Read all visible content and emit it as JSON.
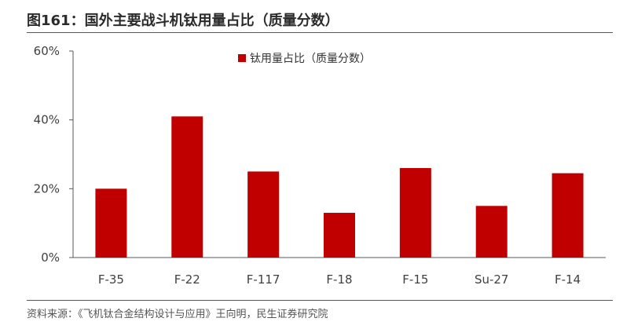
{
  "figure": {
    "title": "图161：国外主要战斗机钛用量占比（质量分数）",
    "source": "资料来源：《飞机钛合金结构设计与应用》王向明，民生证券研究院"
  },
  "colors": {
    "bar": "#C00000",
    "axis": "#595959",
    "rule": "#555555"
  },
  "chart_data": {
    "type": "bar",
    "title": "",
    "xlabel": "",
    "ylabel": "",
    "categories": [
      "F-35",
      "F-22",
      "F-117",
      "F-18",
      "F-15",
      "Su-27",
      "F-14"
    ],
    "series": [
      {
        "name": "钛用量占比（质量分数）",
        "values": [
          20,
          41,
          25,
          13,
          26,
          15,
          24.5
        ]
      }
    ],
    "ylim": [
      0,
      60
    ],
    "yticks": [
      0,
      20,
      40,
      60
    ],
    "ytick_labels": [
      "0%",
      "20%",
      "40%",
      "60%"
    ],
    "grid": false,
    "legend_position": "top-center"
  }
}
